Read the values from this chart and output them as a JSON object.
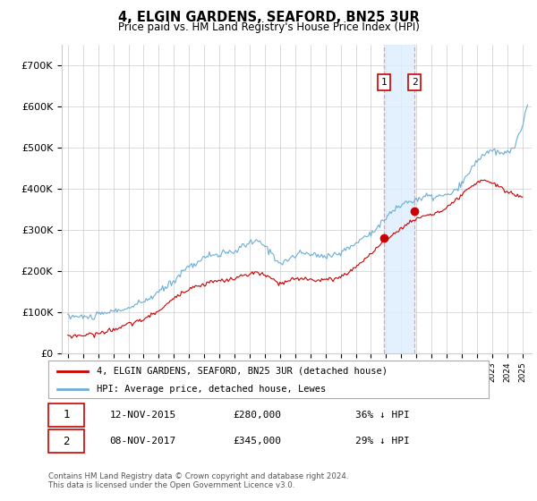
{
  "title": "4, ELGIN GARDENS, SEAFORD, BN25 3UR",
  "subtitle": "Price paid vs. HM Land Registry's House Price Index (HPI)",
  "legend_line1": "4, ELGIN GARDENS, SEAFORD, BN25 3UR (detached house)",
  "legend_line2": "HPI: Average price, detached house, Lewes",
  "footer": "Contains HM Land Registry data © Crown copyright and database right 2024.\nThis data is licensed under the Open Government Licence v3.0.",
  "sale1_date": "12-NOV-2015",
  "sale1_price": "£280,000",
  "sale1_pct": "36% ↓ HPI",
  "sale2_date": "08-NOV-2017",
  "sale2_price": "£345,000",
  "sale2_pct": "29% ↓ HPI",
  "sale1_x": 2015.87,
  "sale2_x": 2017.87,
  "sale1_y": 280000,
  "sale2_y": 345000,
  "hpi_color": "#6baed6",
  "price_color": "#cc0000",
  "shade_color": "#ddeeff",
  "ylim": [
    0,
    750000
  ],
  "yticks": [
    0,
    100000,
    200000,
    300000,
    400000,
    500000,
    600000,
    700000
  ],
  "ytick_labels": [
    "£0",
    "£100K",
    "£200K",
    "£300K",
    "£400K",
    "£500K",
    "£600K",
    "£700K"
  ],
  "xlim_start": 1994.6,
  "xlim_end": 2025.6
}
